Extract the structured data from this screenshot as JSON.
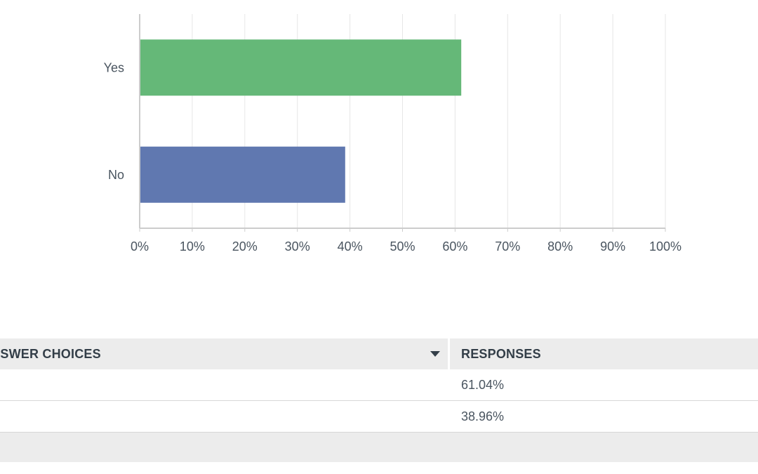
{
  "chart_data": {
    "type": "bar",
    "orientation": "horizontal",
    "categories": [
      "Yes",
      "No"
    ],
    "values": [
      61.04,
      38.96
    ],
    "colors": [
      "#65b878",
      "#6078b0"
    ],
    "xlim": [
      0,
      100
    ],
    "x_ticks": [
      "0%",
      "10%",
      "20%",
      "30%",
      "40%",
      "50%",
      "60%",
      "70%",
      "80%",
      "90%",
      "100%"
    ],
    "grid": "vertical",
    "legend": "none"
  },
  "table": {
    "headers": {
      "choices": "ANSWER CHOICES",
      "responses": "RESPONSES"
    },
    "rows": [
      {
        "response": "61.04%"
      },
      {
        "response": "38.96%"
      }
    ]
  }
}
